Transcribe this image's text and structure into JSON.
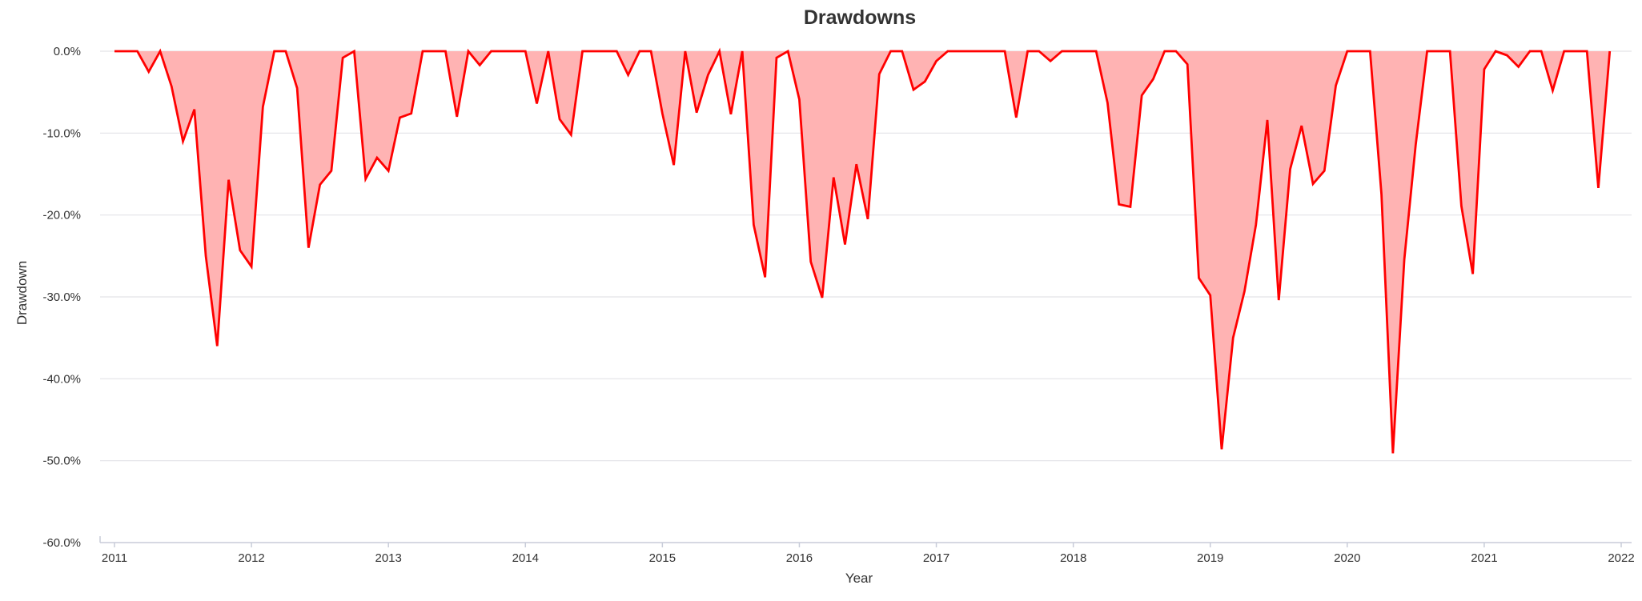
{
  "chart_data": {
    "type": "area",
    "title": "Drawdowns",
    "xlabel": "Year",
    "ylabel": "Drawdown",
    "ylim": [
      -60,
      0
    ],
    "xlim": [
      "2011-01",
      "2022-01"
    ],
    "grid": "horizontal",
    "legend": "none",
    "y_ticks": [
      0,
      -10,
      -20,
      -30,
      -40,
      -50,
      -60
    ],
    "y_tick_labels": [
      "0.0%",
      "-10.0%",
      "-20.0%",
      "-30.0%",
      "-40.0%",
      "-50.0%",
      "-60.0%"
    ],
    "x_tick_labels": [
      "2011",
      "2012",
      "2013",
      "2014",
      "2015",
      "2016",
      "2017",
      "2018",
      "2019",
      "2020",
      "2021",
      "2022"
    ],
    "series": [
      {
        "line_color": "#ff0000",
        "fill_color": "#ffb3b3",
        "x": [
          "2011-01",
          "2011-02",
          "2011-03",
          "2011-04",
          "2011-05",
          "2011-06",
          "2011-07",
          "2011-08",
          "2011-09",
          "2011-10",
          "2011-11",
          "2011-12",
          "2012-01",
          "2012-02",
          "2012-03",
          "2012-04",
          "2012-05",
          "2012-06",
          "2012-07",
          "2012-08",
          "2012-09",
          "2012-10",
          "2012-11",
          "2012-12",
          "2013-01",
          "2013-02",
          "2013-03",
          "2013-04",
          "2013-05",
          "2013-06",
          "2013-07",
          "2013-08",
          "2013-09",
          "2013-10",
          "2013-11",
          "2013-12",
          "2014-01",
          "2014-02",
          "2014-03",
          "2014-04",
          "2014-05",
          "2014-06",
          "2014-07",
          "2014-08",
          "2014-09",
          "2014-10",
          "2014-11",
          "2014-12",
          "2015-01",
          "2015-02",
          "2015-03",
          "2015-04",
          "2015-05",
          "2015-06",
          "2015-07",
          "2015-08",
          "2015-09",
          "2015-10",
          "2015-11",
          "2015-12",
          "2016-01",
          "2016-02",
          "2016-03",
          "2016-04",
          "2016-05",
          "2016-06",
          "2016-07",
          "2016-08",
          "2016-09",
          "2016-10",
          "2016-11",
          "2016-12",
          "2017-01",
          "2017-02",
          "2017-03",
          "2017-04",
          "2017-05",
          "2017-06",
          "2017-07",
          "2017-08",
          "2017-09",
          "2017-10",
          "2017-11",
          "2017-12",
          "2018-01",
          "2018-02",
          "2018-03",
          "2018-04",
          "2018-05",
          "2018-06",
          "2018-07",
          "2018-08",
          "2018-09",
          "2018-10",
          "2018-11",
          "2018-12",
          "2019-01",
          "2019-02",
          "2019-03",
          "2019-04",
          "2019-05",
          "2019-06",
          "2019-07",
          "2019-08",
          "2019-09",
          "2019-10",
          "2019-11",
          "2019-12",
          "2020-01",
          "2020-02",
          "2020-03",
          "2020-04",
          "2020-05",
          "2020-06",
          "2020-07",
          "2020-08",
          "2020-09",
          "2020-10",
          "2020-11",
          "2020-12",
          "2021-01",
          "2021-02",
          "2021-03",
          "2021-04",
          "2021-05",
          "2021-06",
          "2021-07",
          "2021-08",
          "2021-09",
          "2021-10",
          "2021-11",
          "2021-12"
        ],
        "values": [
          0.0,
          0.0,
          0.0,
          -2.5,
          0.0,
          -4.3,
          -11.0,
          -7.1,
          -25.0,
          -36.0,
          -15.7,
          -24.3,
          -26.3,
          -6.8,
          0.0,
          0.0,
          -4.5,
          -24.0,
          -16.3,
          -14.6,
          -0.8,
          0.0,
          -15.6,
          -13.0,
          -14.6,
          -8.1,
          -7.6,
          0.0,
          0.0,
          0.0,
          -8.0,
          0.0,
          -1.7,
          0.0,
          0.0,
          0.0,
          0.0,
          -6.4,
          0.0,
          -8.3,
          -10.2,
          0.0,
          0.0,
          0.0,
          0.0,
          -2.9,
          0.0,
          0.0,
          -7.6,
          -13.9,
          0.0,
          -7.5,
          -2.9,
          0.0,
          -7.7,
          0.0,
          -21.2,
          -27.6,
          -0.8,
          0.0,
          -5.9,
          -25.7,
          -30.1,
          -15.4,
          -23.6,
          -13.8,
          -20.5,
          -2.8,
          0.0,
          0.0,
          -4.7,
          -3.7,
          -1.2,
          0.0,
          0.0,
          0.0,
          0.0,
          0.0,
          0.0,
          -8.1,
          0.0,
          0.0,
          -1.2,
          0.0,
          0.0,
          0.0,
          0.0,
          -6.3,
          -18.7,
          -19.0,
          -5.4,
          -3.4,
          0.0,
          0.0,
          -1.6,
          -27.7,
          -29.8,
          -48.6,
          -35.0,
          -29.3,
          -21.2,
          -8.4,
          -30.4,
          -14.4,
          -9.1,
          -16.2,
          -14.6,
          -4.2,
          0.0,
          0.0,
          0.0,
          -17.5,
          -49.1,
          -25.4,
          -11.4,
          0.0,
          0.0,
          0.0,
          -18.9,
          -27.2,
          -2.2,
          0.0,
          -0.5,
          -1.9,
          0.0,
          0.0,
          -4.8,
          0.0,
          0.0,
          0.0,
          -16.7,
          0.0
        ]
      }
    ]
  }
}
